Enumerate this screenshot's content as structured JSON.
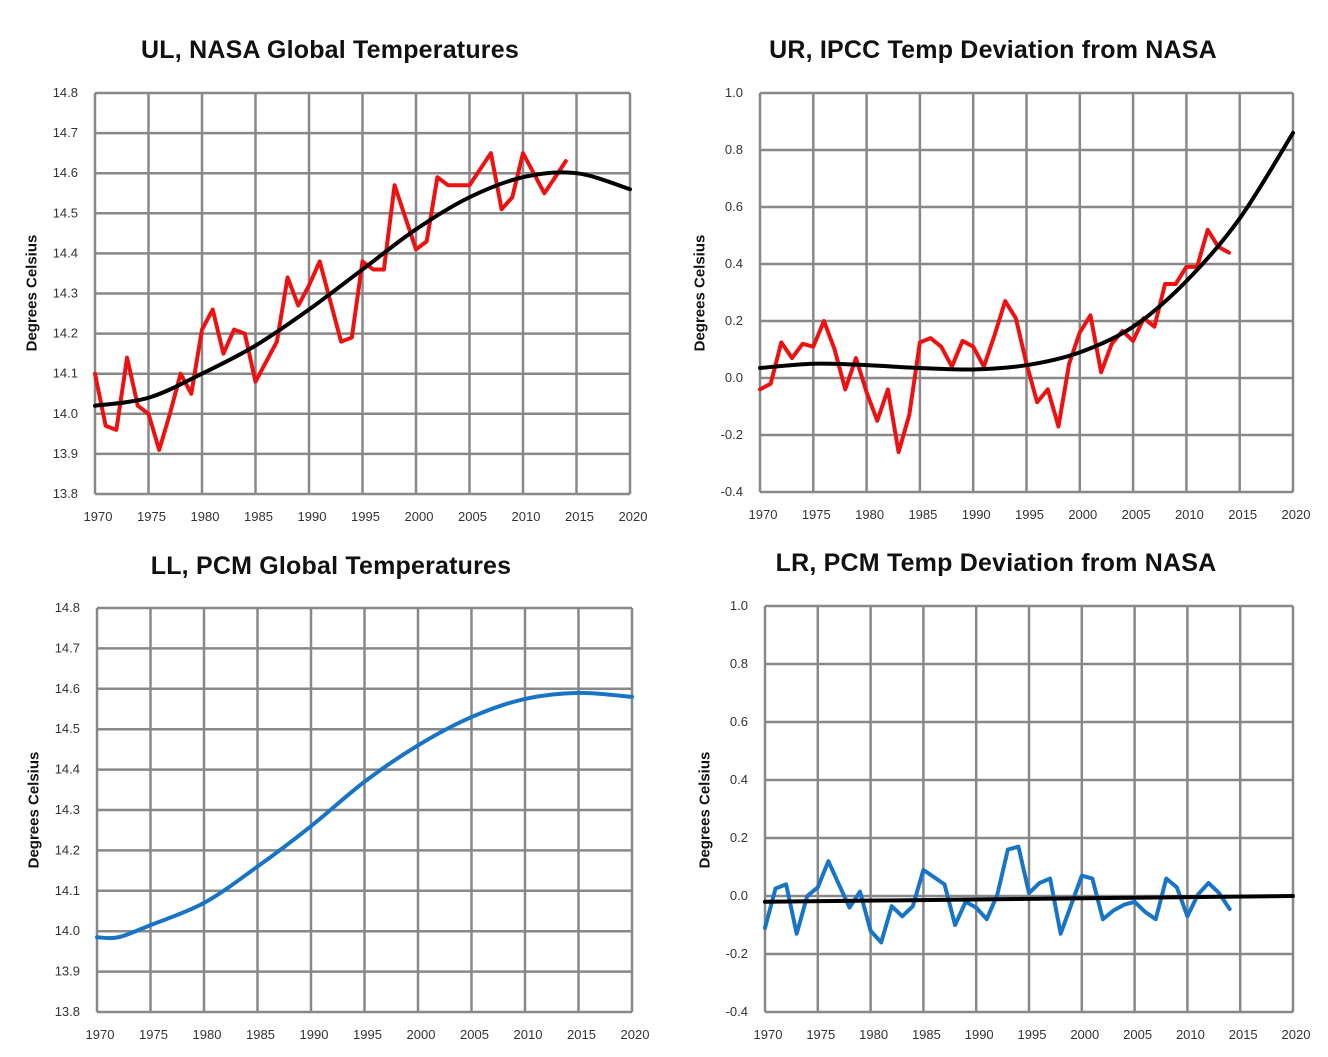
{
  "chart_data": [
    {
      "id": "ul",
      "type": "line",
      "title": "UL, NASA Global Temperatures",
      "ylabel": "Degrees Celsius",
      "xlabel": "",
      "xlim": [
        1970,
        2020
      ],
      "ylim": [
        13.8,
        14.8
      ],
      "grid": true,
      "x_ticks": [
        "1970",
        "1975",
        "1980",
        "1985",
        "1990",
        "1995",
        "2000",
        "2005",
        "2010",
        "2015",
        "2020"
      ],
      "y_ticks": [
        "13.8",
        "13.9",
        "14.0",
        "14.1",
        "14.2",
        "14.3",
        "14.4",
        "14.5",
        "14.6",
        "14.7",
        "14.8"
      ],
      "series": [
        {
          "color": "#ee1111",
          "smooth": false,
          "x_start": 1970,
          "values": [
            14.1,
            13.97,
            13.96,
            14.14,
            14.02,
            14.0,
            13.91,
            14.0,
            14.1,
            14.05,
            14.21,
            14.26,
            14.15,
            14.21,
            14.2,
            14.08,
            14.13,
            14.18,
            14.34,
            14.27,
            14.32,
            14.38,
            14.28,
            14.18,
            14.19,
            14.38,
            14.36,
            14.36,
            14.57,
            14.49,
            14.41,
            14.43,
            14.59,
            14.57,
            14.57,
            14.57,
            14.61,
            14.65,
            14.51,
            14.54,
            14.65,
            14.6,
            14.55,
            14.59,
            14.63
          ]
        },
        {
          "color": "#000000",
          "smooth": true,
          "x": [
            1970,
            1975,
            1980,
            1985,
            1990,
            1995,
            2000,
            2005,
            2010,
            2015,
            2020
          ],
          "values": [
            14.02,
            14.04,
            14.1,
            14.17,
            14.26,
            14.36,
            14.46,
            14.54,
            14.59,
            14.6,
            14.56
          ]
        }
      ]
    },
    {
      "id": "ur",
      "type": "line",
      "title": "UR, IPCC Temp Deviation from NASA",
      "ylabel": "Degrees Celsius",
      "xlabel": "",
      "xlim": [
        1970,
        2020
      ],
      "ylim": [
        -0.4,
        1.0
      ],
      "grid": true,
      "x_ticks": [
        "1970",
        "1975",
        "1980",
        "1985",
        "1990",
        "1995",
        "2000",
        "2005",
        "2010",
        "2015",
        "2020"
      ],
      "y_ticks": [
        "-0.4",
        "-0.2",
        "0.0",
        "0.2",
        "0.4",
        "0.6",
        "0.8",
        "1.0"
      ],
      "series": [
        {
          "color": "#ee1111",
          "smooth": false,
          "x_start": 1970,
          "values": [
            -0.04,
            -0.02,
            0.125,
            0.07,
            0.12,
            0.11,
            0.2,
            0.1,
            -0.04,
            0.07,
            -0.05,
            -0.15,
            -0.04,
            -0.26,
            -0.13,
            0.125,
            0.14,
            0.11,
            0.04,
            0.13,
            0.11,
            0.04,
            0.15,
            0.27,
            0.21,
            0.05,
            -0.085,
            -0.04,
            -0.17,
            0.05,
            0.16,
            0.22,
            0.02,
            0.12,
            0.165,
            0.13,
            0.21,
            0.18,
            0.33,
            0.33,
            0.39,
            0.39,
            0.52,
            0.46,
            0.44
          ]
        },
        {
          "color": "#000000",
          "smooth": true,
          "x": [
            1970,
            1975,
            1980,
            1985,
            1990,
            1995,
            2000,
            2005,
            2010,
            2015,
            2020
          ],
          "values": [
            0.035,
            0.05,
            0.045,
            0.035,
            0.03,
            0.045,
            0.09,
            0.18,
            0.34,
            0.56,
            0.86
          ]
        }
      ]
    },
    {
      "id": "ll",
      "type": "line",
      "title": "LL, PCM Global Temperatures",
      "ylabel": "Degrees Celsius",
      "xlabel": "",
      "xlim": [
        1970,
        2020
      ],
      "ylim": [
        13.8,
        14.8
      ],
      "grid": true,
      "x_ticks": [
        "1970",
        "1975",
        "1980",
        "1985",
        "1990",
        "1995",
        "2000",
        "2005",
        "2010",
        "2015",
        "2020"
      ],
      "y_ticks": [
        "13.8",
        "13.9",
        "14.0",
        "14.1",
        "14.2",
        "14.3",
        "14.4",
        "14.5",
        "14.6",
        "14.7",
        "14.8"
      ],
      "series": [
        {
          "color": "#1874c4",
          "smooth": true,
          "x": [
            1970,
            1972,
            1975,
            1980,
            1985,
            1990,
            1995,
            2000,
            2005,
            2010,
            2015,
            2020
          ],
          "values": [
            13.985,
            13.985,
            14.015,
            14.07,
            14.16,
            14.26,
            14.37,
            14.46,
            14.53,
            14.575,
            14.59,
            14.58
          ]
        }
      ]
    },
    {
      "id": "lr",
      "type": "line",
      "title": "LR, PCM Temp Deviation from NASA",
      "ylabel": "Degrees Celsius",
      "xlabel": "",
      "xlim": [
        1970,
        2020
      ],
      "ylim": [
        -0.4,
        1.0
      ],
      "grid": true,
      "x_ticks": [
        "1970",
        "1975",
        "1980",
        "1985",
        "1990",
        "1995",
        "2000",
        "2005",
        "2010",
        "2015",
        "2020"
      ],
      "y_ticks": [
        "-0.4",
        "-0.2",
        "0.0",
        "0.2",
        "0.4",
        "0.6",
        "0.8",
        "1.0"
      ],
      "series": [
        {
          "color": "#1874c4",
          "smooth": false,
          "x_start": 1970,
          "values": [
            -0.11,
            0.026,
            0.04,
            -0.13,
            0.0,
            0.03,
            0.12,
            0.04,
            -0.04,
            0.015,
            -0.12,
            -0.16,
            -0.035,
            -0.07,
            -0.035,
            0.09,
            0.065,
            0.04,
            -0.1,
            -0.02,
            -0.04,
            -0.08,
            0.005,
            0.16,
            0.17,
            0.01,
            0.045,
            0.06,
            -0.13,
            -0.03,
            0.07,
            0.06,
            -0.08,
            -0.05,
            -0.03,
            -0.02,
            -0.055,
            -0.08,
            0.06,
            0.03,
            -0.07,
            0.005,
            0.045,
            0.01,
            -0.045
          ]
        },
        {
          "color": "#000000",
          "smooth": false,
          "x": [
            1970,
            2020
          ],
          "values": [
            -0.02,
            0.0
          ]
        }
      ]
    }
  ]
}
